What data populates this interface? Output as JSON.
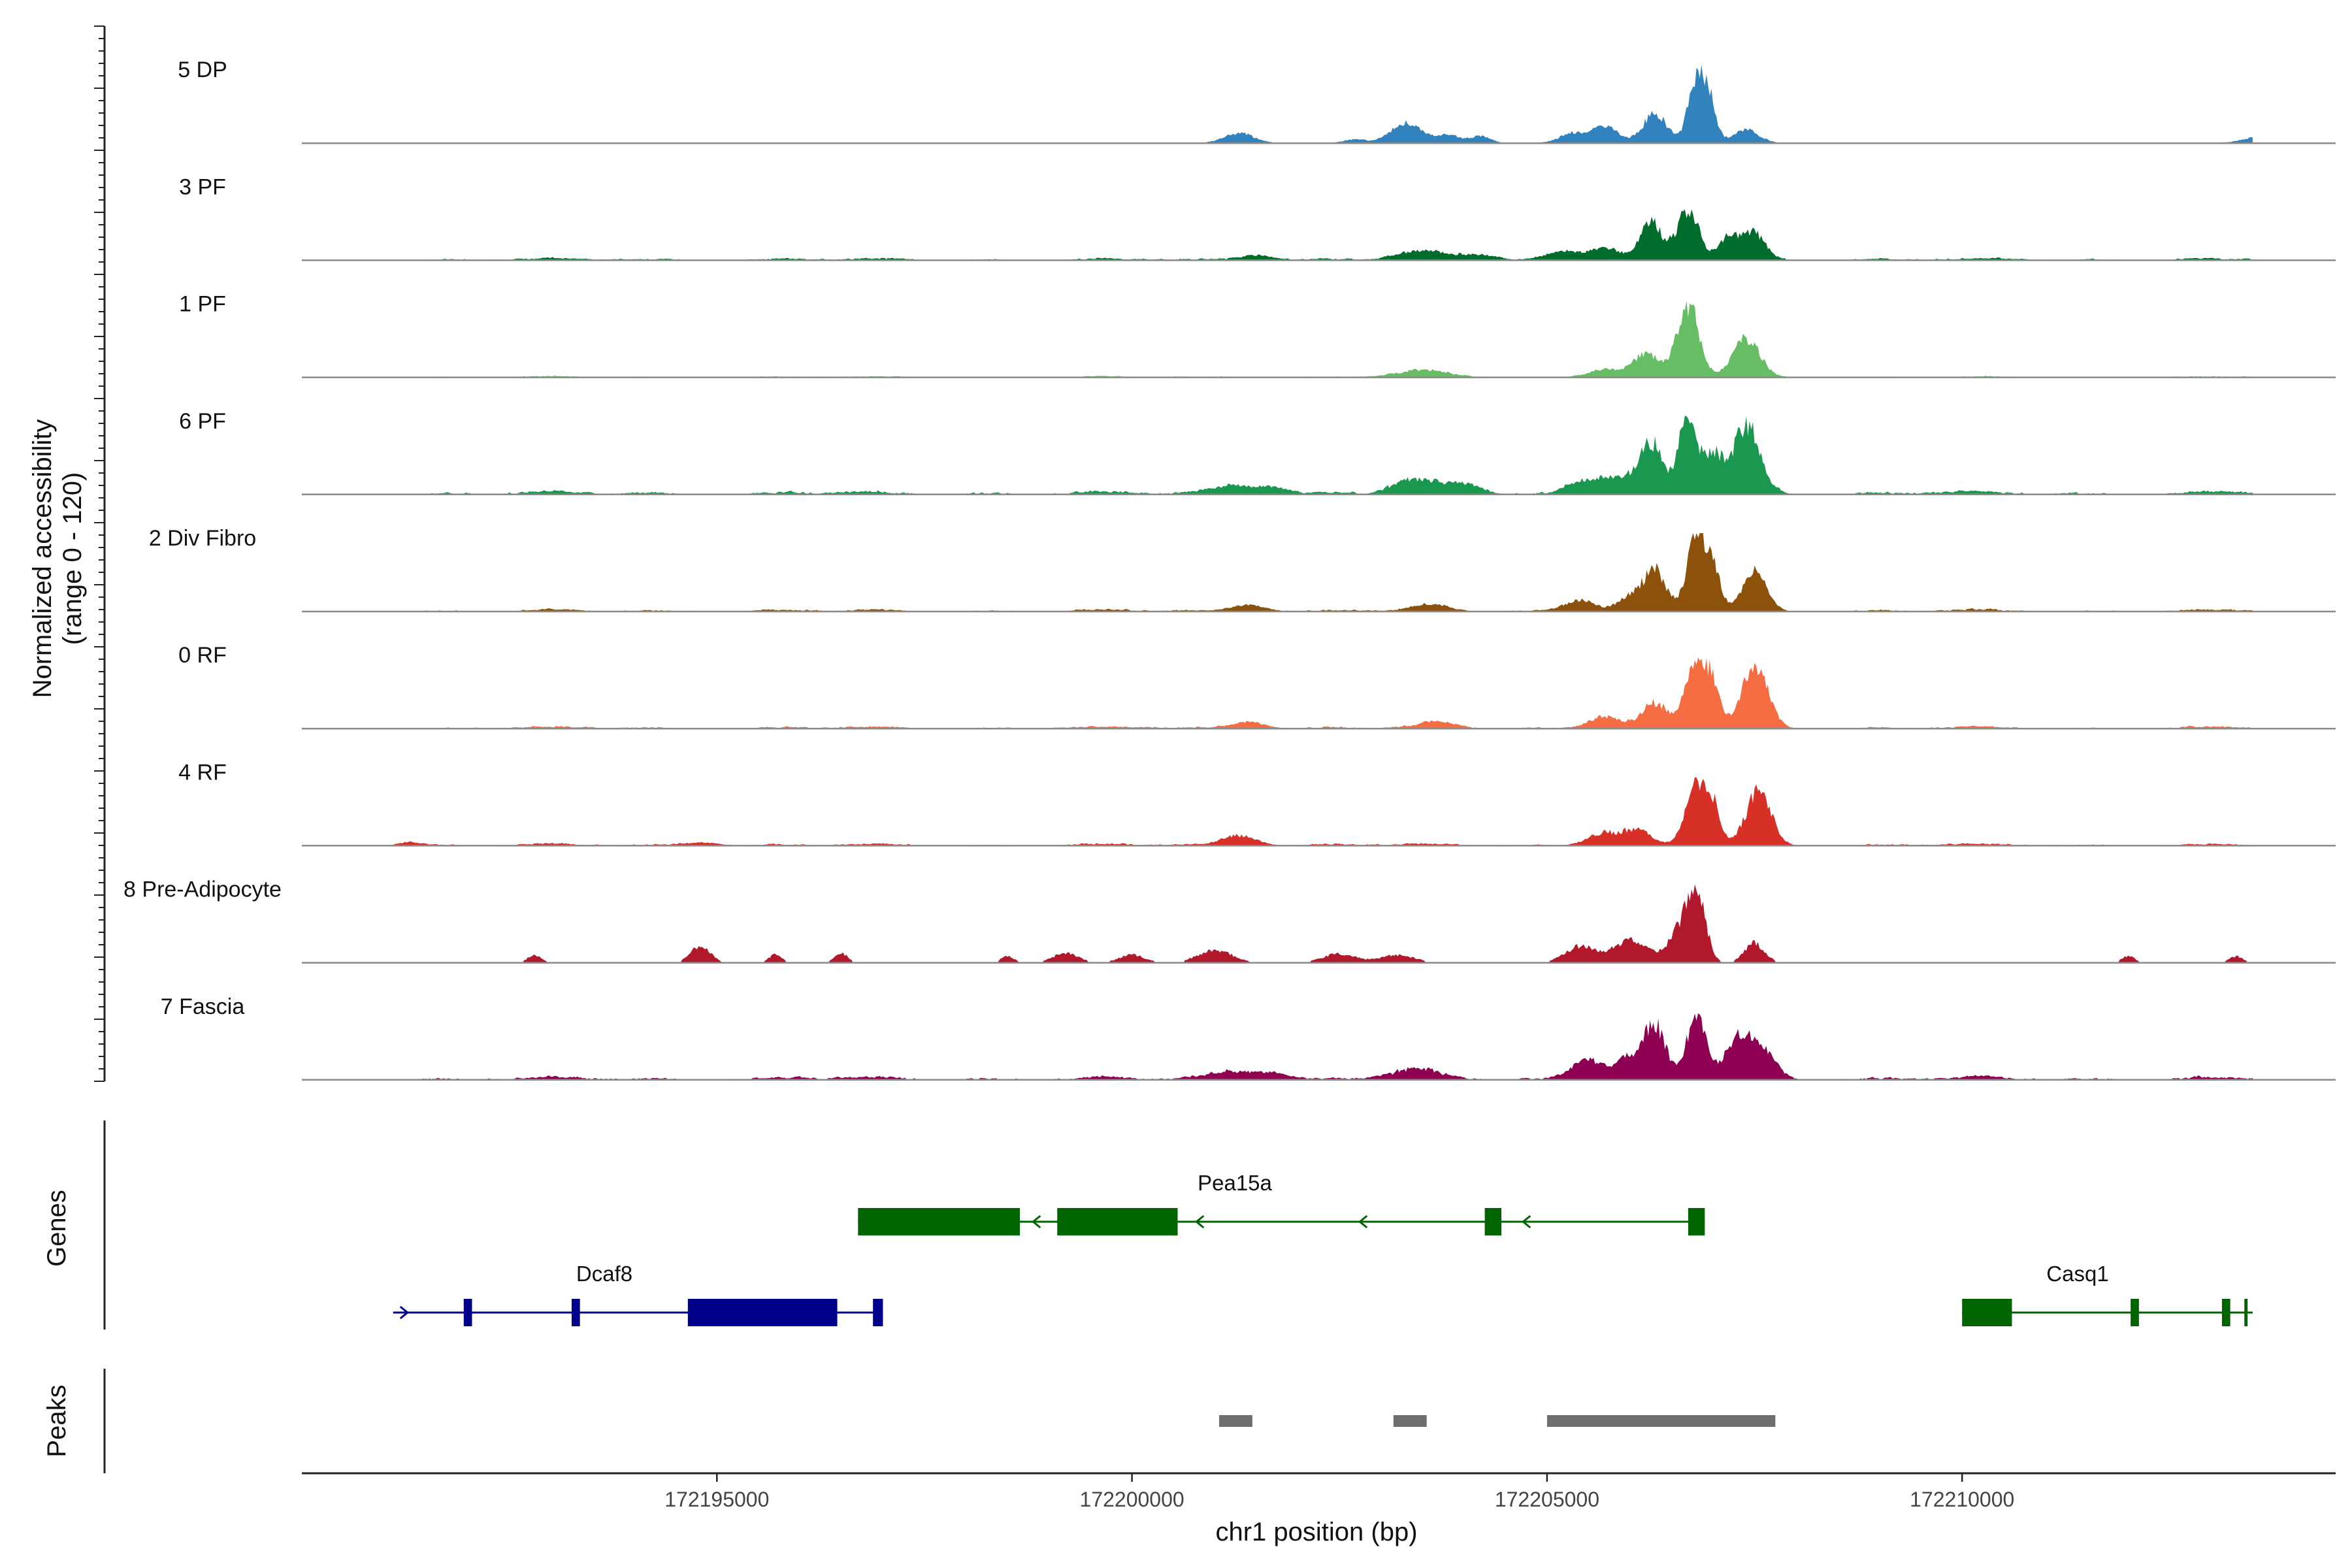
{
  "chart_data": {
    "type": "area",
    "title": "",
    "ylabel": [
      "Normalized accessibility",
      "(range 0 - 120)"
    ],
    "ylim": [
      0,
      120
    ],
    "xlabel": "chr1 position (bp)",
    "xlim": [
      172190000,
      172214500
    ],
    "x_ticks": [
      172195000,
      172200000,
      172205000,
      172210000
    ],
    "x_tick_labels": [
      "172195000",
      "172200000",
      "172205000",
      "172210000"
    ],
    "region": [
      172191100,
      172213500
    ],
    "tracks": [
      {
        "name": "5 DP",
        "color": "#3182bd",
        "baseline": 0.5,
        "peaks": [
          [
            172201300,
            15,
            180
          ],
          [
            172202700,
            6,
            120
          ],
          [
            172203300,
            30,
            180
          ],
          [
            172203800,
            12,
            150
          ],
          [
            172204200,
            10,
            120
          ],
          [
            172205300,
            15,
            150
          ],
          [
            172205700,
            25,
            160
          ],
          [
            172206300,
            45,
            140
          ],
          [
            172206800,
            92,
            100
          ],
          [
            172206950,
            55,
            90
          ],
          [
            172207400,
            20,
            150
          ],
          [
            172213500,
            8,
            150
          ]
        ]
      },
      {
        "name": "3 PF",
        "color": "#006d2c",
        "baseline": 2,
        "peaks": [
          [
            172201500,
            8,
            200
          ],
          [
            172203500,
            12,
            300
          ],
          [
            172204200,
            8,
            200
          ],
          [
            172205200,
            14,
            200
          ],
          [
            172205700,
            18,
            180
          ],
          [
            172206250,
            55,
            130
          ],
          [
            172206700,
            75,
            130
          ],
          [
            172207200,
            35,
            120
          ],
          [
            172207500,
            40,
            130
          ]
        ]
      },
      {
        "name": "1 PF",
        "color": "#66bd63",
        "baseline": 1,
        "peaks": [
          [
            172203500,
            10,
            300
          ],
          [
            172205700,
            12,
            200
          ],
          [
            172206200,
            35,
            150
          ],
          [
            172206700,
            110,
            130
          ],
          [
            172207400,
            60,
            160
          ]
        ]
      },
      {
        "name": "6 PF",
        "color": "#1a9850",
        "baseline": 3,
        "peaks": [
          [
            172201200,
            12,
            250
          ],
          [
            172201700,
            10,
            200
          ],
          [
            172203400,
            20,
            250
          ],
          [
            172204000,
            15,
            200
          ],
          [
            172205400,
            18,
            180
          ],
          [
            172205800,
            25,
            200
          ],
          [
            172206250,
            75,
            140
          ],
          [
            172206700,
            118,
            110
          ],
          [
            172207000,
            60,
            100
          ],
          [
            172207400,
            105,
            160
          ]
        ]
      },
      {
        "name": "2 Div Fibro",
        "color": "#8c510a",
        "baseline": 2,
        "peaks": [
          [
            172201400,
            10,
            200
          ],
          [
            172203600,
            8,
            200
          ],
          [
            172205400,
            18,
            180
          ],
          [
            172206000,
            20,
            150
          ],
          [
            172206300,
            60,
            130
          ],
          [
            172206800,
            115,
            110
          ],
          [
            172207000,
            65,
            90
          ],
          [
            172207500,
            60,
            140
          ]
        ]
      },
      {
        "name": "0 RF",
        "color": "#f46d43",
        "baseline": 2,
        "peaks": [
          [
            172201400,
            10,
            200
          ],
          [
            172203700,
            8,
            200
          ],
          [
            172205700,
            18,
            200
          ],
          [
            172206300,
            35,
            150
          ],
          [
            172206800,
            95,
            130
          ],
          [
            172207000,
            50,
            90
          ],
          [
            172207500,
            90,
            160
          ]
        ]
      },
      {
        "name": "4 RF",
        "color": "#d73027",
        "baseline": 2,
        "peaks": [
          [
            172191300,
            5,
            150
          ],
          [
            172194800,
            5,
            200
          ],
          [
            172201300,
            15,
            200
          ],
          [
            172205700,
            20,
            200
          ],
          [
            172206100,
            20,
            150
          ],
          [
            172206800,
            95,
            120
          ],
          [
            172207000,
            50,
            90
          ],
          [
            172207550,
            80,
            150
          ]
        ]
      },
      {
        "name": "8 Pre-Adipocyte",
        "color": "#b2182b",
        "baseline": 0,
        "peaks": [
          [
            172192800,
            12,
            80
          ],
          [
            172194800,
            25,
            120
          ],
          [
            172195700,
            12,
            80
          ],
          [
            172196500,
            14,
            80
          ],
          [
            172198500,
            10,
            80
          ],
          [
            172199200,
            15,
            150
          ],
          [
            172200000,
            12,
            150
          ],
          [
            172201000,
            20,
            200
          ],
          [
            172202500,
            14,
            200
          ],
          [
            172203200,
            12,
            200
          ],
          [
            172205400,
            25,
            180
          ],
          [
            172206000,
            35,
            200
          ],
          [
            172206600,
            45,
            150
          ],
          [
            172206800,
            100,
            110
          ],
          [
            172207500,
            30,
            120
          ],
          [
            172212000,
            10,
            80
          ],
          [
            172213300,
            10,
            80
          ]
        ]
      },
      {
        "name": "7 Fascia",
        "color": "#8e0152",
        "baseline": 3,
        "peaks": [
          [
            172201200,
            12,
            250
          ],
          [
            172201700,
            10,
            200
          ],
          [
            172203400,
            12,
            300
          ],
          [
            172205500,
            30,
            200
          ],
          [
            172206000,
            30,
            150
          ],
          [
            172206300,
            75,
            130
          ],
          [
            172206800,
            90,
            120
          ],
          [
            172207300,
            60,
            150
          ],
          [
            172207600,
            40,
            160
          ]
        ]
      }
    ],
    "genes": {
      "track_label": "Genes",
      "items": [
        {
          "name": "Pea15a",
          "strand": "-",
          "color": "#006400",
          "start": 172196700,
          "end": 172206900,
          "row": 0,
          "exons": [
            [
              172196700,
              172198650
            ],
            [
              172199100,
              172200550
            ],
            [
              172204250,
              172204450
            ],
            [
              172206700,
              172206900
            ]
          ]
        },
        {
          "name": "Dcaf8",
          "strand": "+",
          "color": "#00008b",
          "start": 172191100,
          "end": 172197000,
          "row": 1,
          "exons": [
            [
              172191950,
              172192050
            ],
            [
              172193250,
              172193350
            ],
            [
              172194650,
              172196450
            ],
            [
              172196880,
              172197000
            ]
          ]
        },
        {
          "name": "Casq1",
          "strand": "-",
          "color": "#006400",
          "start": 172210000,
          "end": 172213500,
          "row": 1,
          "exons": [
            [
              172210000,
              172210600
            ],
            [
              172212030,
              172212130
            ],
            [
              172213130,
              172213230
            ],
            [
              172213400,
              172213430
            ]
          ]
        }
      ]
    },
    "peaks_track": {
      "track_label": "Peaks",
      "color": "#6e6e6e",
      "regions": [
        [
          172201050,
          172201450
        ],
        [
          172203150,
          172203550
        ],
        [
          172205000,
          172207750
        ]
      ]
    }
  }
}
